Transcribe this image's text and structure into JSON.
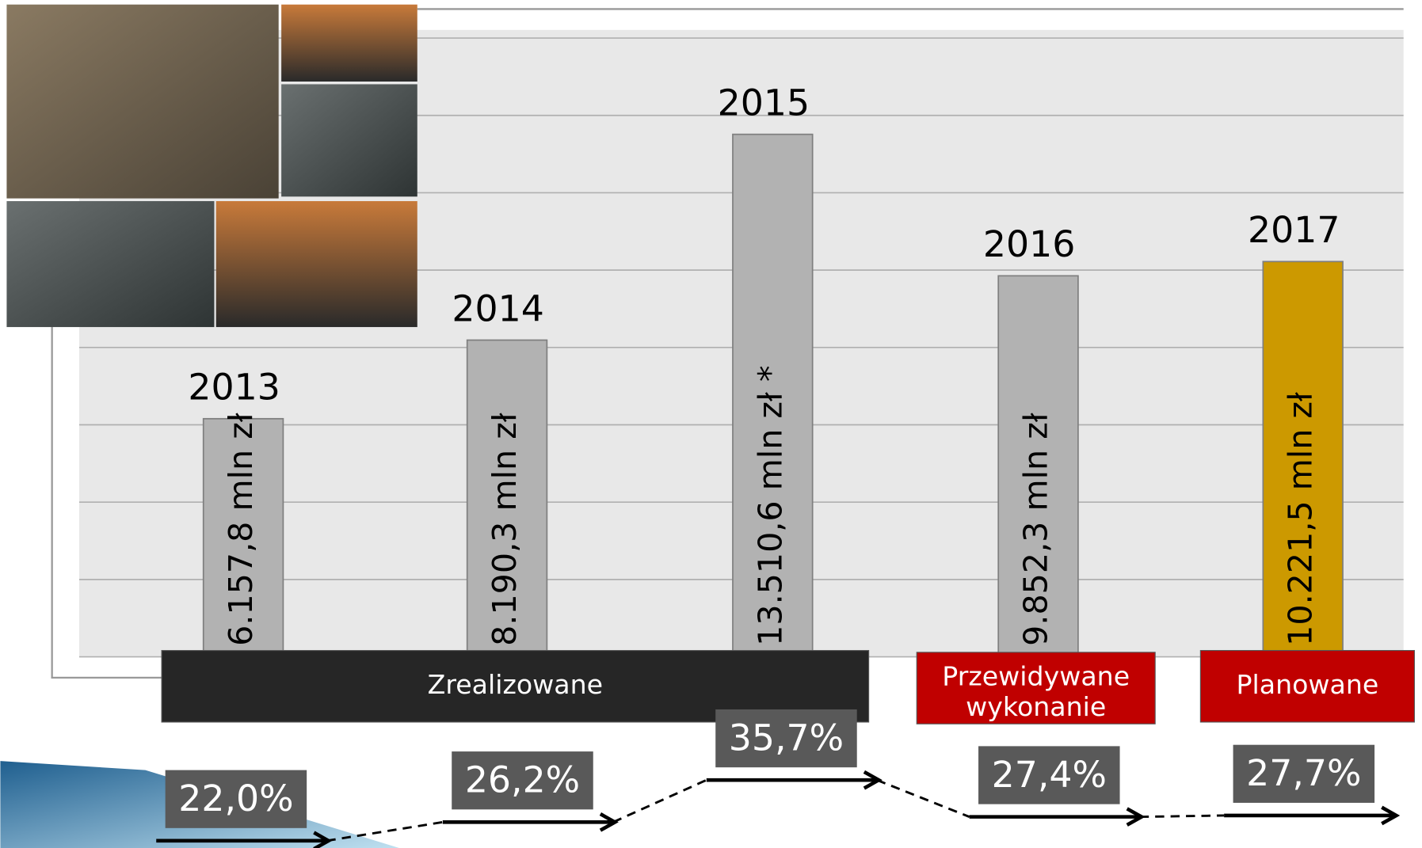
{
  "chart_data": {
    "type": "bar",
    "categories": [
      "2013",
      "2014",
      "2015",
      "2016",
      "2017"
    ],
    "values": [
      6157.8,
      8190.3,
      13510.6,
      9852.3,
      10221.5
    ],
    "value_labels": [
      "6.157,8 mln zł",
      "8.190,3 mln zł",
      "13.510,6 mln zł *",
      "9.852,3 mln zł",
      "10.221,5 mln zł"
    ],
    "colors": [
      "#b2b2b2",
      "#b2b2b2",
      "#b2b2b2",
      "#b2b2b2",
      "#cc9900"
    ],
    "ylim": [
      0,
      16000
    ],
    "yticks": [
      0,
      2000,
      4000,
      6000,
      8000,
      10000,
      12000,
      14000,
      16000
    ],
    "grid": true,
    "status_groups": [
      {
        "name": "Zrealizowane",
        "categories": [
          "2013",
          "2014",
          "2015"
        ],
        "color": "#262626"
      },
      {
        "name": "Przewidywane wykonanie",
        "categories": [
          "2016"
        ],
        "color": "#c00000"
      },
      {
        "name": "Planowane",
        "categories": [
          "2017"
        ],
        "color": "#c00000"
      }
    ],
    "shares": {
      "values": [
        22.0,
        26.2,
        35.7,
        27.4,
        27.7
      ],
      "value_labels": [
        "22,0%",
        "26,2%",
        "35,7%",
        "27,4%",
        "27,7%"
      ]
    }
  }
}
